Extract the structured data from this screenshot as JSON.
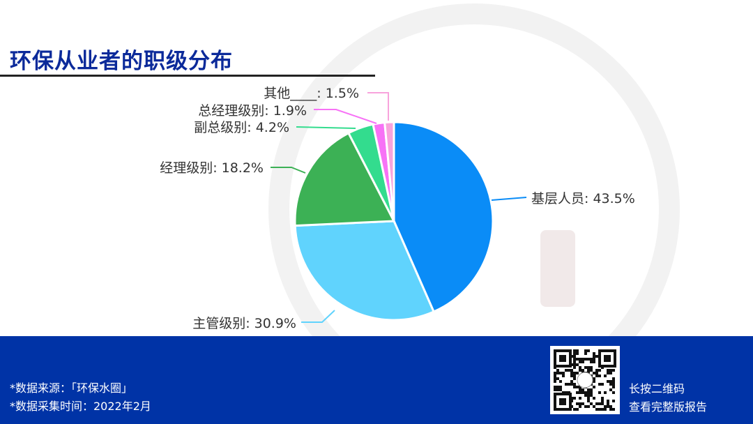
{
  "title": "环保从业者的职级分布",
  "chart_data": {
    "type": "pie",
    "start": "top",
    "direction": "clockwise",
    "slices": [
      {
        "label": "基层人员",
        "value": 43.5,
        "color": "#0a8cf7"
      },
      {
        "label": "主管级别",
        "value": 30.9,
        "color": "#60d3fd"
      },
      {
        "label": "经理级别",
        "value": 18.2,
        "color": "#3cb155"
      },
      {
        "label": "副总级别",
        "value": 4.2,
        "color": "#33dc8e"
      },
      {
        "label": "总经理级别",
        "value": 1.9,
        "color": "#f772f6"
      },
      {
        "label": "其他____",
        "value": 1.5,
        "color": "#f8a3dc"
      }
    ]
  },
  "footer": {
    "source": "*数据来源：「环保水圈」",
    "date": "*数据采集时间：2022年2月",
    "qr_line1": "长按二维码",
    "qr_line2": "查看完整版报告"
  },
  "colors": {
    "title": "#0b2a9a",
    "footer_bg": "#0033a6"
  }
}
